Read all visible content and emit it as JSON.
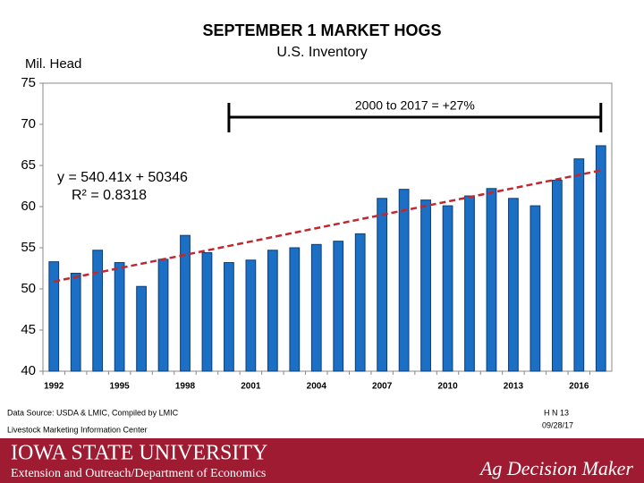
{
  "chart_data": {
    "type": "bar",
    "title": "SEPTEMBER 1 MARKET HOGS",
    "subtitle": "U.S. Inventory",
    "y_label": "Mil. Head",
    "categories": [
      "1992",
      null,
      null,
      "1995",
      null,
      null,
      "1998",
      null,
      null,
      "2001",
      null,
      null,
      "2004",
      null,
      null,
      "2007",
      null,
      null,
      "2010",
      null,
      null,
      "2013",
      null,
      null,
      "2016",
      null
    ],
    "values": [
      53.3,
      51.9,
      54.7,
      53.2,
      50.3,
      53.6,
      56.5,
      54.4,
      53.2,
      53.5,
      54.7,
      55.0,
      55.4,
      55.8,
      56.7,
      61.0,
      62.1,
      60.8,
      60.1,
      61.3,
      62.2,
      61.0,
      60.1,
      63.2,
      65.8,
      67.4
    ],
    "color": "#1b6fc4",
    "ylim": [
      40,
      75
    ],
    "yticks": [
      40,
      45,
      50,
      55,
      60,
      65,
      70,
      75
    ],
    "trendline": {
      "equation": "y = 540.41x + 50346",
      "r_squared": "R² = 0.8318",
      "values": [
        50.9,
        64.4
      ],
      "color": "#c0282d"
    },
    "annotation": "2000 to 2017 = +27%"
  },
  "footer": {
    "source": "Data Source:  USDA & LMIC, Compiled by LMIC",
    "center": "Livestock Marketing Information Center",
    "code": "H N 13",
    "date": "09/28/17",
    "university": "IOWA STATE UNIVERSITY",
    "department": "Extension and Outreach/Department of Economics",
    "brand": "Ag Decision Maker"
  }
}
